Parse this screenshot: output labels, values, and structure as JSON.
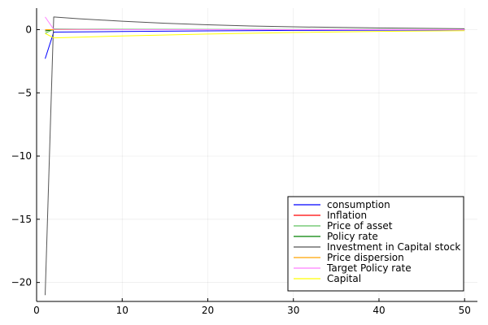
{
  "chart_data": {
    "type": "line",
    "title": "",
    "xlabel": "",
    "ylabel": "",
    "xlim": [
      0,
      51.5
    ],
    "ylim": [
      -21.5,
      1.7
    ],
    "xticks": [
      0,
      10,
      20,
      30,
      40,
      50
    ],
    "yticks": [
      0,
      -5,
      -10,
      -15,
      -20
    ],
    "xtick_labels": [
      "0",
      "10",
      "20",
      "30",
      "40",
      "50"
    ],
    "ytick_labels": [
      "0",
      "−5",
      "−10",
      "−15",
      "−20"
    ],
    "grid": true,
    "legend_position": "bottom-right",
    "series": [
      {
        "name": "consumption",
        "color": "#0000ff",
        "x": [
          1,
          2,
          5,
          10,
          20,
          30,
          40,
          50
        ],
        "y": [
          -2.3,
          -0.2,
          -0.18,
          -0.15,
          -0.1,
          -0.06,
          -0.04,
          -0.02
        ]
      },
      {
        "name": "Inflation",
        "color": "#ff0000",
        "x": [
          1,
          2,
          5,
          10,
          20,
          30,
          40,
          50
        ],
        "y": [
          -0.1,
          0.0,
          0.0,
          0.0,
          0.0,
          0.0,
          0.0,
          0.0
        ]
      },
      {
        "name": "Price of asset",
        "color": "#5ec05e",
        "x": [
          1,
          2,
          5,
          10,
          20,
          30,
          40,
          50
        ],
        "y": [
          -0.3,
          0.05,
          0.04,
          0.03,
          0.02,
          0.01,
          0.01,
          0.0
        ]
      },
      {
        "name": "Policy rate",
        "color": "#008000",
        "x": [
          1,
          2,
          5,
          10,
          20,
          30,
          40,
          50
        ],
        "y": [
          -0.1,
          0.0,
          0.0,
          0.0,
          0.0,
          0.0,
          0.0,
          0.0
        ]
      },
      {
        "name": "Investment in Capital stock",
        "color": "#555555",
        "x": [
          1,
          2,
          5,
          10,
          15,
          20,
          25,
          30,
          40,
          50
        ],
        "y": [
          -21.0,
          1.0,
          0.86,
          0.66,
          0.5,
          0.38,
          0.29,
          0.22,
          0.13,
          0.07
        ]
      },
      {
        "name": "Price dispersion",
        "color": "#ffa500",
        "x": [
          1,
          2,
          5,
          10,
          20,
          30,
          40,
          50
        ],
        "y": [
          0.0,
          0.0,
          0.0,
          0.0,
          0.0,
          0.0,
          0.0,
          0.0
        ]
      },
      {
        "name": "Target Policy rate",
        "color": "#ff7fff",
        "x": [
          1,
          2,
          5,
          10,
          20,
          30,
          40,
          50
        ],
        "y": [
          1.0,
          0.02,
          0.01,
          0.0,
          0.0,
          0.0,
          0.0,
          0.0
        ]
      },
      {
        "name": "Capital",
        "color": "#ffff00",
        "x": [
          1,
          2,
          5,
          10,
          20,
          30,
          40,
          50
        ],
        "y": [
          -0.3,
          -0.65,
          -0.6,
          -0.5,
          -0.35,
          -0.23,
          -0.14,
          -0.08
        ]
      }
    ]
  }
}
